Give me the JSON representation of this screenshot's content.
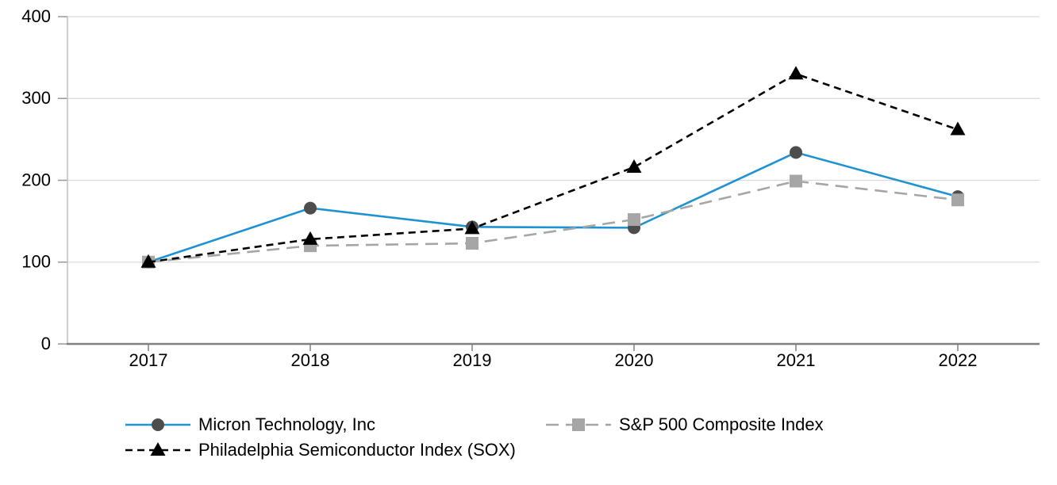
{
  "chart_data": {
    "type": "line",
    "x": [
      "2017",
      "2018",
      "2019",
      "2020",
      "2021",
      "2022"
    ],
    "ylim": [
      0,
      400
    ],
    "yticks": [
      0,
      100,
      200,
      300,
      400
    ],
    "grid": true,
    "legend_position": "bottom",
    "series": [
      {
        "name": "Micron Technology, Inc",
        "values": [
          100,
          166,
          143,
          142,
          234,
          180
        ],
        "line_color": "#1f93d2",
        "dash": "solid",
        "marker": "circle",
        "marker_color": "#4d4d4d"
      },
      {
        "name": "S&P 500 Composite Index",
        "values": [
          100,
          120,
          123,
          152,
          199,
          176
        ],
        "line_color": "#a6a6a6",
        "dash": "long-dash",
        "marker": "square",
        "marker_color": "#a6a6a6"
      },
      {
        "name": "Philadelphia Semiconductor Index (SOX)",
        "values": [
          100,
          128,
          141,
          216,
          330,
          262
        ],
        "line_color": "#000000",
        "dash": "dash",
        "marker": "triangle",
        "marker_color": "#000000"
      }
    ],
    "colors": {
      "gridline": "#d9d9d9",
      "x_axis": "#808080",
      "y_axis": "#bfbfbf",
      "tick": "#999999",
      "text": "#000000"
    }
  }
}
